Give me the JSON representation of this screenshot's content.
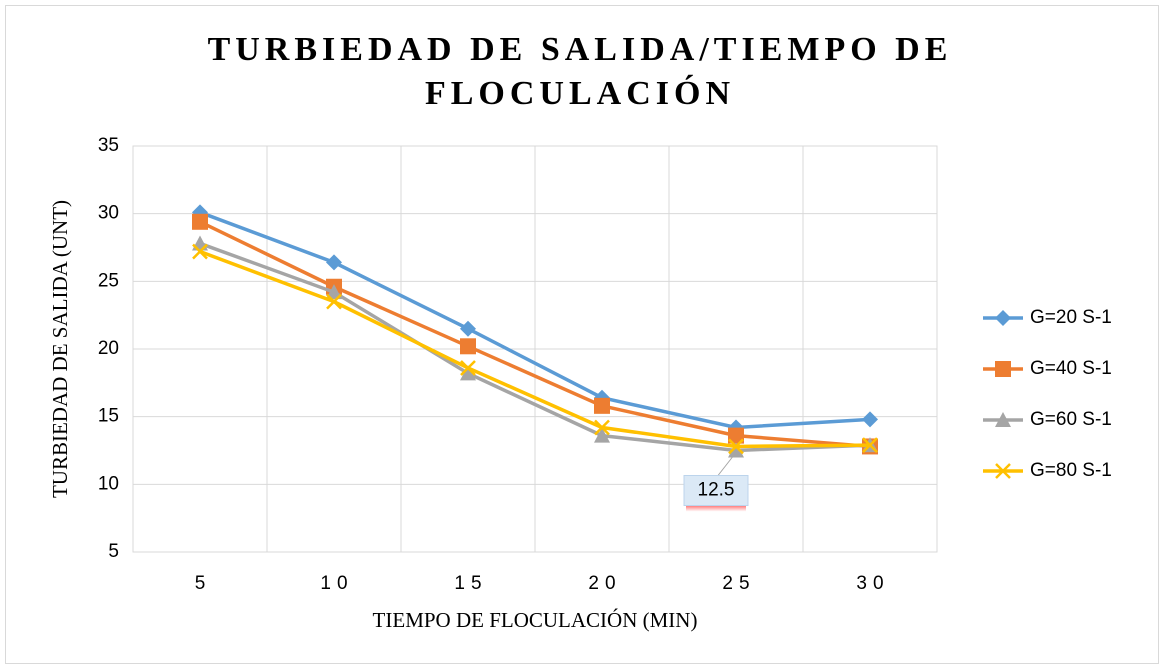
{
  "chart_data": {
    "type": "line",
    "title": "TURBIEDAD DE SALIDA/TIEMPO DE FLOCULACIÓN",
    "x_label": "TIEMPO DE FLOCULACIÓN (MIN)",
    "y_label": "TURBIEDAD DE SALIDA (UNT)",
    "categories": [
      "5",
      "10",
      "15",
      "20",
      "25",
      "30"
    ],
    "ylim": [
      5,
      35
    ],
    "yticks": [
      5,
      10,
      15,
      20,
      25,
      30,
      35
    ],
    "grid": true,
    "legend": "right",
    "series": [
      {
        "name": "G=20 S-1",
        "color": "#5b9bd5",
        "marker": "diamond",
        "values": [
          30.1,
          26.4,
          21.5,
          16.4,
          14.2,
          14.8
        ]
      },
      {
        "name": "G=40 S-1",
        "color": "#ed7d31",
        "marker": "square",
        "values": [
          29.4,
          24.6,
          20.2,
          15.8,
          13.6,
          12.8
        ]
      },
      {
        "name": "G=60 S-1",
        "color": "#a5a5a5",
        "marker": "triangle",
        "values": [
          27.8,
          24.2,
          18.2,
          13.6,
          12.5,
          12.9
        ],
        "labeled_point": 4
      },
      {
        "name": "G=80 S-1",
        "color": "#ffc000",
        "marker": "x",
        "values": [
          27.2,
          23.5,
          18.6,
          14.2,
          12.8,
          12.9
        ]
      }
    ]
  }
}
